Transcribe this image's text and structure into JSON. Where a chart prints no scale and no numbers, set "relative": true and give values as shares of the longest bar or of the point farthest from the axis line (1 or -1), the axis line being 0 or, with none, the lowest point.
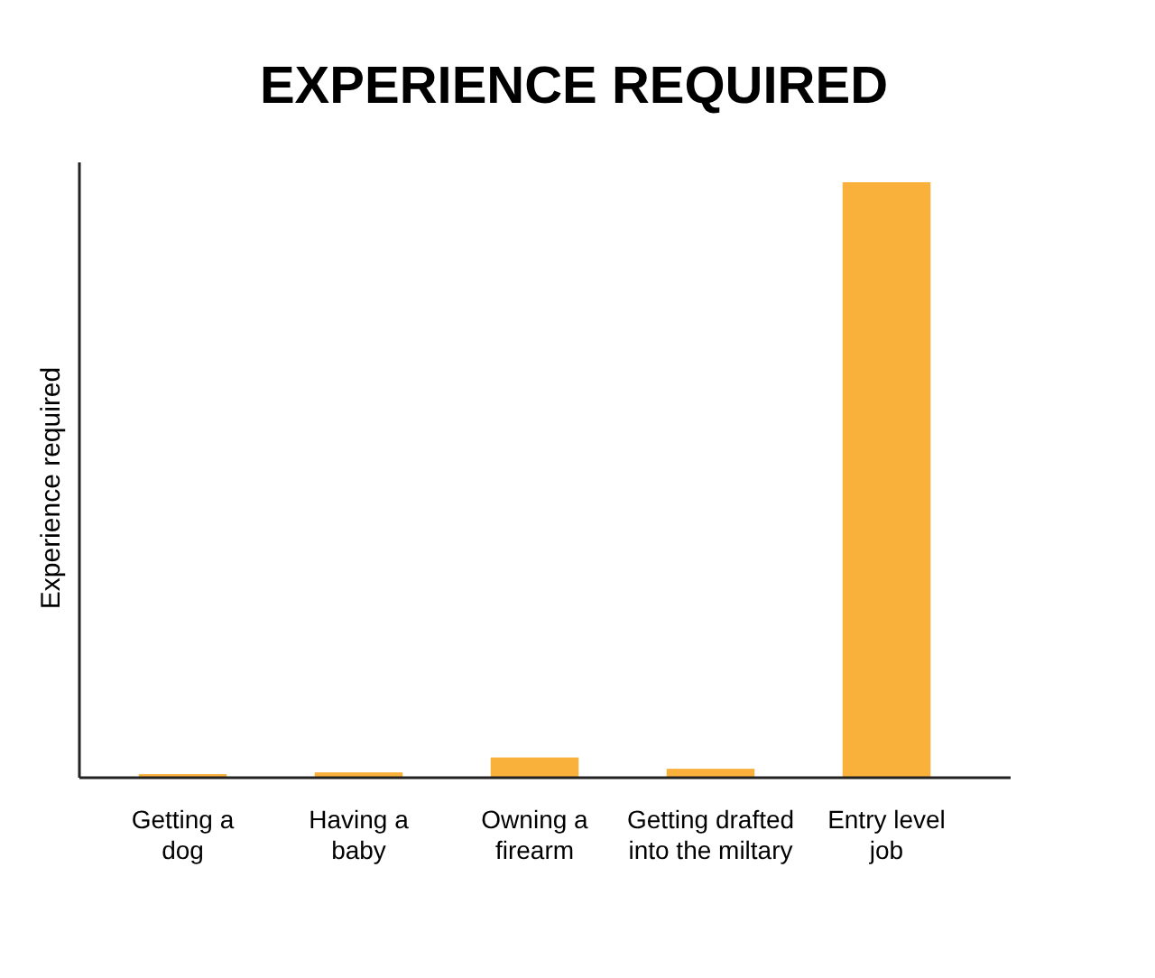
{
  "chart_data": {
    "type": "bar",
    "title": "EXPERIENCE REQUIRED",
    "ylabel": "Experience required",
    "categories": [
      "Getting a\ndog",
      "Having a\nbaby",
      "Owning a\nfirearm",
      "Getting drafted\ninto the miltary",
      "Entry level\njob"
    ],
    "values": [
      0.006,
      0.009,
      0.034,
      0.015,
      1
    ],
    "color": "#f9b13c",
    "relative": true
  }
}
